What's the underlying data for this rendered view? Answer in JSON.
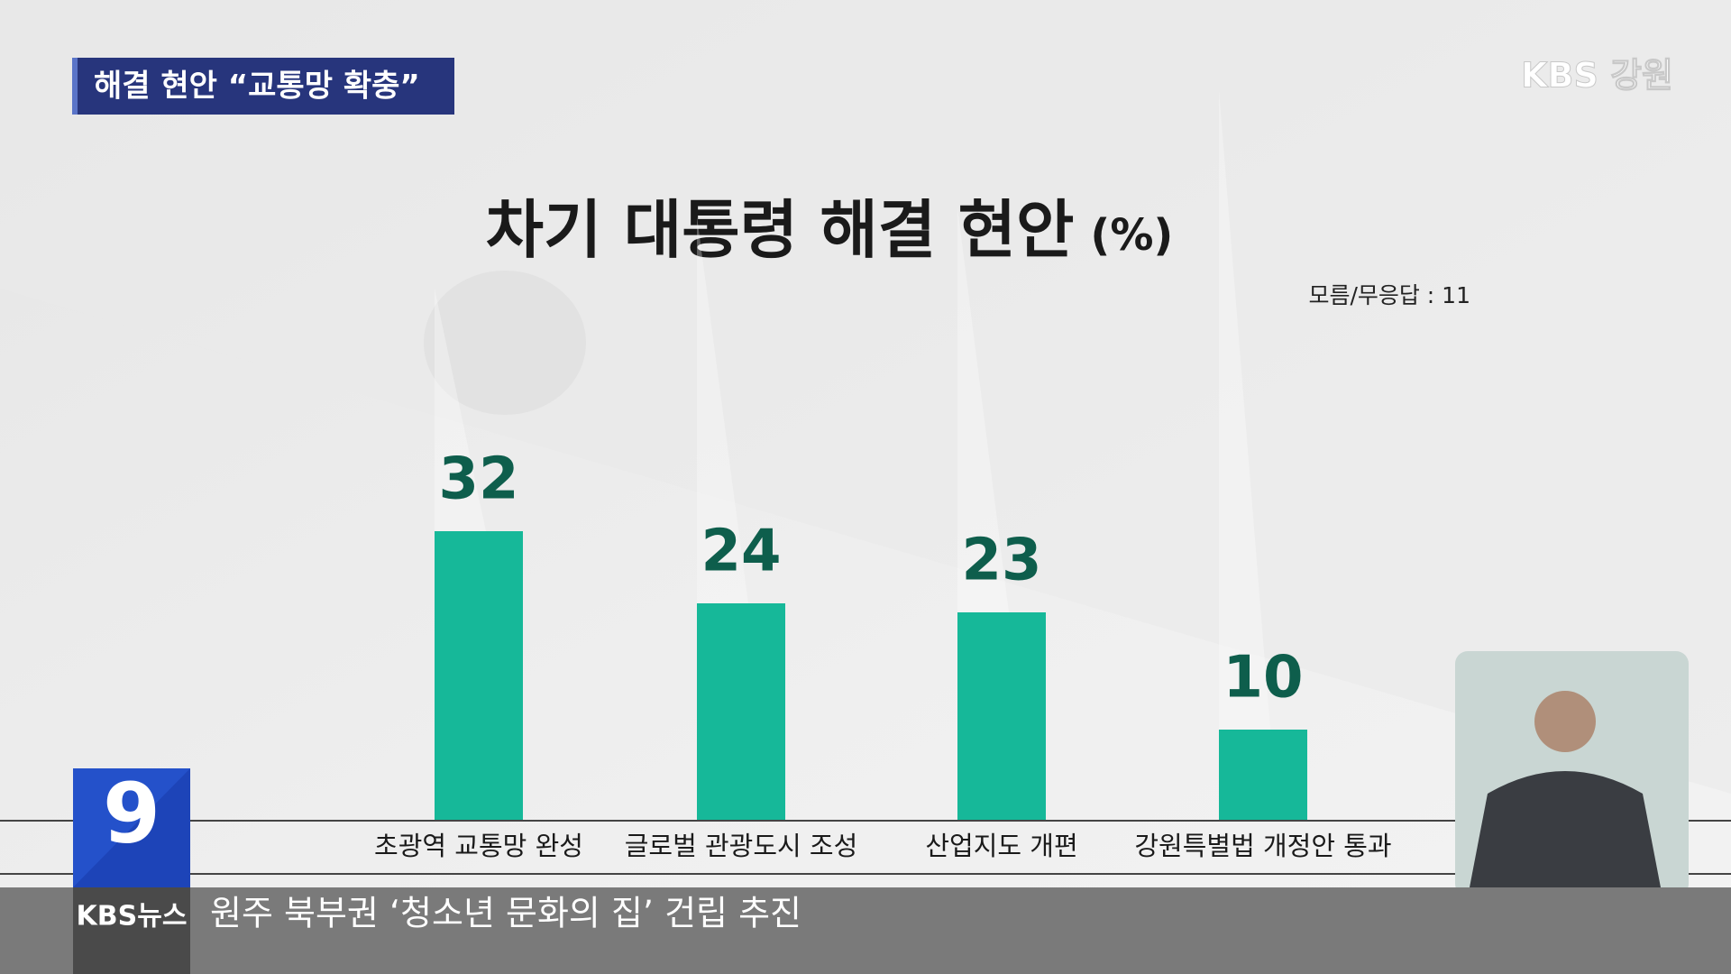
{
  "chart_data": {
    "type": "bar",
    "title": "차기 대통령 해결 현안",
    "unit": "(%)",
    "annotation": "모름/무응답 : 11",
    "categories": [
      "초광역 교통망 완성",
      "글로벌 관광도시 조성",
      "산업지도 개편",
      "강원특별법 개정안 통과"
    ],
    "values": [
      32,
      24,
      23,
      10
    ],
    "color": "#16b899"
  },
  "broadcast": {
    "topic_tag": "해결 현안 “교통망 확충”",
    "channel_logo": "KBS 강원",
    "program_number": "9",
    "program_logo": "KBS뉴스",
    "ticker": "원주 북부권 ‘청소년 문화의 집’ 건립 추진"
  }
}
